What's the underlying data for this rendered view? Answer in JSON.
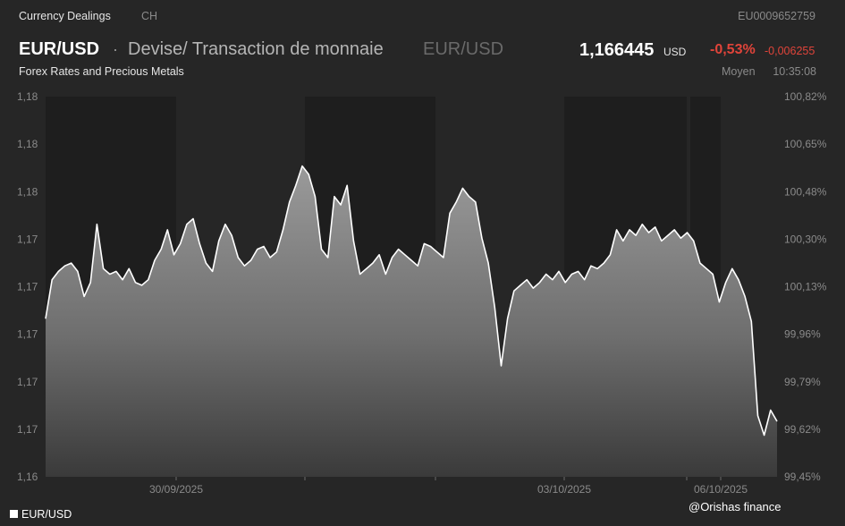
{
  "header": {
    "category": "Currency Dealings",
    "country": "CH",
    "isin": "EU0009652759",
    "symbol": "EUR/USD",
    "separator": "·",
    "instrument_name": "Devise/ Transaction de monnaie",
    "symbol_secondary": "EUR/USD",
    "price": "1,166445",
    "currency": "USD",
    "change_percent": "-0,53%",
    "change_absolute": "-0,006255",
    "subtitle": "Forex Rates and Precious Metals",
    "price_type": "Moyen",
    "time": "10:35:08"
  },
  "colors": {
    "background": "#262626",
    "shade_band": "#1e1e1e",
    "line": "#ffffff",
    "negative": "#e0443a",
    "axis_text": "#8a8a8a"
  },
  "legend": {
    "label": "EUR/USD"
  },
  "watermark": "@Orishas finance",
  "chart_data": {
    "type": "area",
    "title": "",
    "xlabel": "",
    "ylabel": "",
    "x_ticks": [
      "30/09/2025",
      "03/10/2025",
      "06/10/2025"
    ],
    "y_ticks_left": [
      "1,18",
      "1,18",
      "1,18",
      "1,17",
      "1,17",
      "1,17",
      "1,17",
      "1,17",
      "1,16"
    ],
    "y_ticks_right": [
      "100,82%",
      "100,65%",
      "100,48%",
      "100,30%",
      "100,13%",
      "99,96%",
      "99,79%",
      "99,62%",
      "99,45%"
    ],
    "ylim_percent": [
      99.45,
      100.82
    ],
    "legend_position": "bottom-left",
    "grid": false,
    "series": [
      {
        "name": "EUR/USD",
        "x": [
          0,
          1,
          2,
          3,
          4,
          5,
          6,
          7,
          8,
          9,
          10,
          11,
          12,
          13,
          14,
          15,
          16,
          17,
          18,
          19,
          20,
          21,
          22,
          23,
          24,
          25,
          26,
          27,
          28,
          29,
          30,
          31,
          32,
          33,
          34,
          35,
          36,
          37,
          38,
          39,
          40,
          41,
          42,
          43,
          44,
          45,
          46,
          47,
          48,
          49,
          50,
          51,
          52,
          53,
          54,
          55,
          56,
          57,
          58,
          59,
          60,
          61,
          62,
          63,
          64,
          65,
          66,
          67,
          68,
          69,
          70,
          71,
          72,
          73,
          74,
          75,
          76,
          77,
          78,
          79,
          80,
          81,
          82,
          83,
          84,
          85,
          86,
          87,
          88,
          89,
          90,
          91,
          92,
          93,
          94,
          95,
          96,
          97,
          98,
          99,
          100,
          101,
          102,
          103,
          104,
          105,
          106,
          107,
          108,
          109,
          110,
          111,
          112,
          113,
          114
        ],
        "percent": [
          100.02,
          100.16,
          100.19,
          100.21,
          100.22,
          100.19,
          100.1,
          100.15,
          100.36,
          100.2,
          100.18,
          100.19,
          100.16,
          100.2,
          100.15,
          100.14,
          100.16,
          100.23,
          100.27,
          100.34,
          100.25,
          100.29,
          100.36,
          100.38,
          100.29,
          100.22,
          100.19,
          100.3,
          100.36,
          100.32,
          100.24,
          100.21,
          100.23,
          100.27,
          100.28,
          100.24,
          100.26,
          100.34,
          100.44,
          100.5,
          100.57,
          100.54,
          100.46,
          100.27,
          100.24,
          100.46,
          100.43,
          100.5,
          100.3,
          100.18,
          100.2,
          100.22,
          100.25,
          100.18,
          100.24,
          100.27,
          100.25,
          100.23,
          100.21,
          100.29,
          100.28,
          100.26,
          100.24,
          100.4,
          100.44,
          100.49,
          100.46,
          100.44,
          100.31,
          100.22,
          100.06,
          99.85,
          100.02,
          100.12,
          100.14,
          100.16,
          100.13,
          100.15,
          100.18,
          100.16,
          100.19,
          100.15,
          100.18,
          100.19,
          100.16,
          100.21,
          100.2,
          100.22,
          100.25,
          100.34,
          100.3,
          100.34,
          100.32,
          100.36,
          100.33,
          100.35,
          100.3,
          100.32,
          100.34,
          100.31,
          100.33,
          100.3,
          100.22,
          100.2,
          100.18,
          100.08,
          100.15,
          100.2,
          100.16,
          100.1,
          100.01,
          99.67,
          99.6,
          99.69,
          99.65
        ]
      }
    ]
  }
}
